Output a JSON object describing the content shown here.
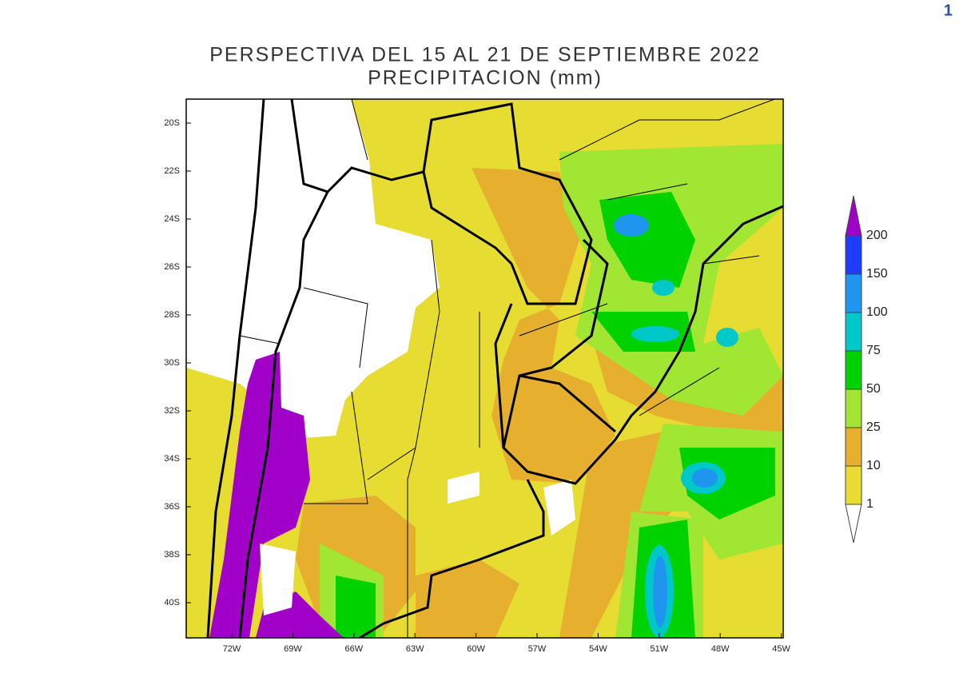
{
  "page_number": "1",
  "title": [
    "PERSPECTIVA DEL 15 AL 21 DE SEPTIEMBRE 2022",
    "PRECIPITACION (mm)"
  ],
  "map": {
    "lat_labels": [
      "20S",
      "22S",
      "24S",
      "26S",
      "28S",
      "30S",
      "32S",
      "34S",
      "36S",
      "38S",
      "40S"
    ],
    "lon_labels": [
      "72W",
      "69W",
      "66W",
      "63W",
      "60W",
      "57W",
      "54W",
      "51W",
      "48W",
      "45W"
    ]
  },
  "legend": {
    "labels": [
      "200",
      "150",
      "100",
      "75",
      "50",
      "25",
      "10",
      "1"
    ],
    "colors": [
      "#a000c8",
      "#1e3cff",
      "#1e96f0",
      "#00c8c8",
      "#00d200",
      "#a0e632",
      "#e6af2d",
      "#e6dc32",
      "#ffffff"
    ]
  }
}
